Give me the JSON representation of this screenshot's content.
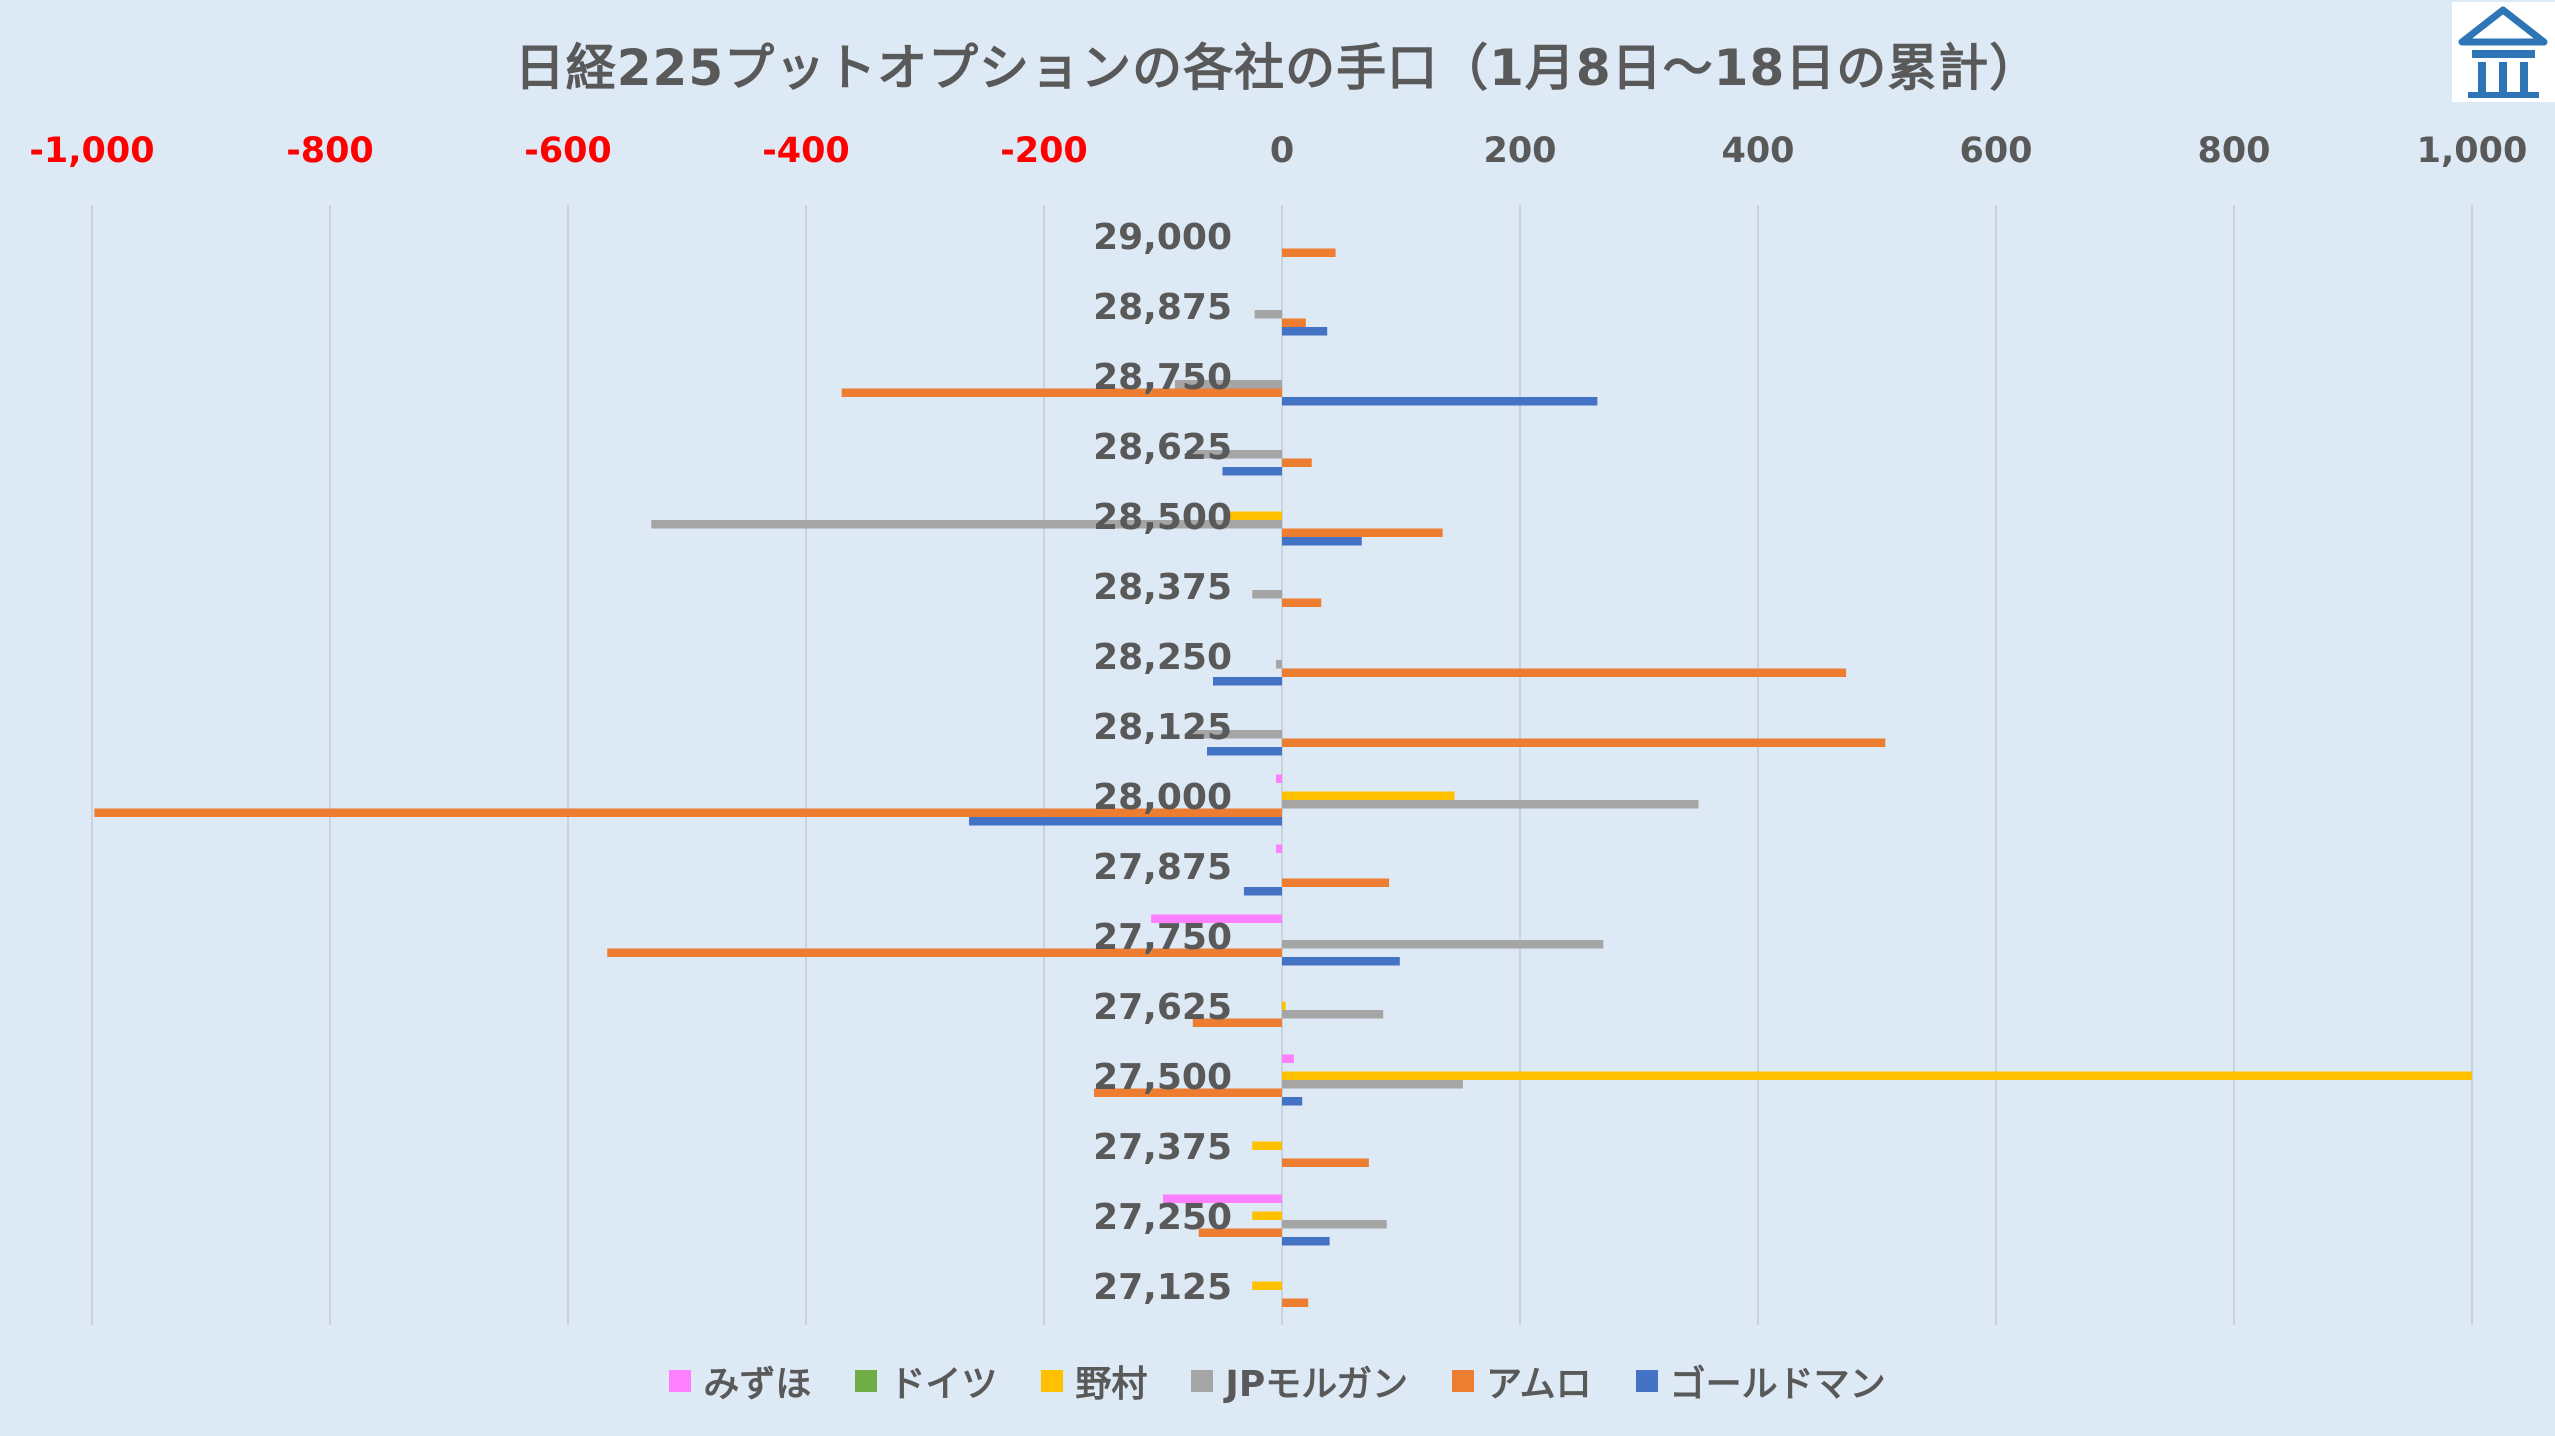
{
  "title": "日経225プットオプションの各社の手口（1月8日～18日の累計）",
  "logo": {
    "icon": "building-logo-icon",
    "color": "#2e75b6"
  },
  "chart_data": {
    "type": "bar",
    "orientation": "horizontal",
    "title": "日経225プットオプションの各社の手口（1月8日～18日の累計）",
    "xlim": [
      -1000,
      1000
    ],
    "x_ticks": [
      -1000,
      -800,
      -600,
      -400,
      -200,
      0,
      200,
      400,
      600,
      800,
      1000
    ],
    "x_tick_labels": [
      "-1,000",
      "-800",
      "-600",
      "-400",
      "-200",
      "0",
      "200",
      "400",
      "600",
      "800",
      "1,000"
    ],
    "x_tick_colors": {
      "negative": "#ff0000",
      "non_negative": "#595959"
    },
    "x_axis_position": "top",
    "grid": true,
    "legend_position": "bottom",
    "categories": [
      "29,000",
      "28,875",
      "28,750",
      "28,625",
      "28,500",
      "28,375",
      "28,250",
      "28,125",
      "28,000",
      "27,875",
      "27,750",
      "27,625",
      "27,500",
      "27,375",
      "27,250",
      "27,125"
    ],
    "series": [
      {
        "name": "みずほ",
        "color": "#ff80ff",
        "values": [
          0,
          0,
          0,
          0,
          0,
          0,
          0,
          0,
          -5,
          -5,
          -110,
          0,
          10,
          0,
          -100,
          0
        ]
      },
      {
        "name": "ドイツ",
        "color": "#70ad47",
        "values": [
          0,
          0,
          0,
          0,
          0,
          0,
          0,
          0,
          0,
          0,
          0,
          0,
          0,
          0,
          0,
          0
        ]
      },
      {
        "name": "野村",
        "color": "#ffc000",
        "values": [
          0,
          0,
          0,
          0,
          -45,
          0,
          0,
          0,
          145,
          0,
          0,
          3,
          1000,
          -25,
          -25,
          -25
        ]
      },
      {
        "name": "JPモルガン",
        "color": "#a5a5a5",
        "values": [
          0,
          -23,
          -90,
          -80,
          -530,
          -25,
          -5,
          -75,
          350,
          0,
          270,
          85,
          152,
          0,
          88,
          0
        ]
      },
      {
        "name": "アムロ",
        "color": "#ed7d31",
        "values": [
          45,
          20,
          -370,
          25,
          135,
          33,
          474,
          507,
          -998,
          90,
          -567,
          -75,
          -158,
          73,
          -70,
          22
        ]
      },
      {
        "name": "ゴールドマン",
        "color": "#4472c4",
        "values": [
          0,
          38,
          265,
          -50,
          67,
          0,
          -58,
          -63,
          -263,
          -32,
          99,
          0,
          17,
          0,
          40,
          0
        ]
      }
    ]
  }
}
